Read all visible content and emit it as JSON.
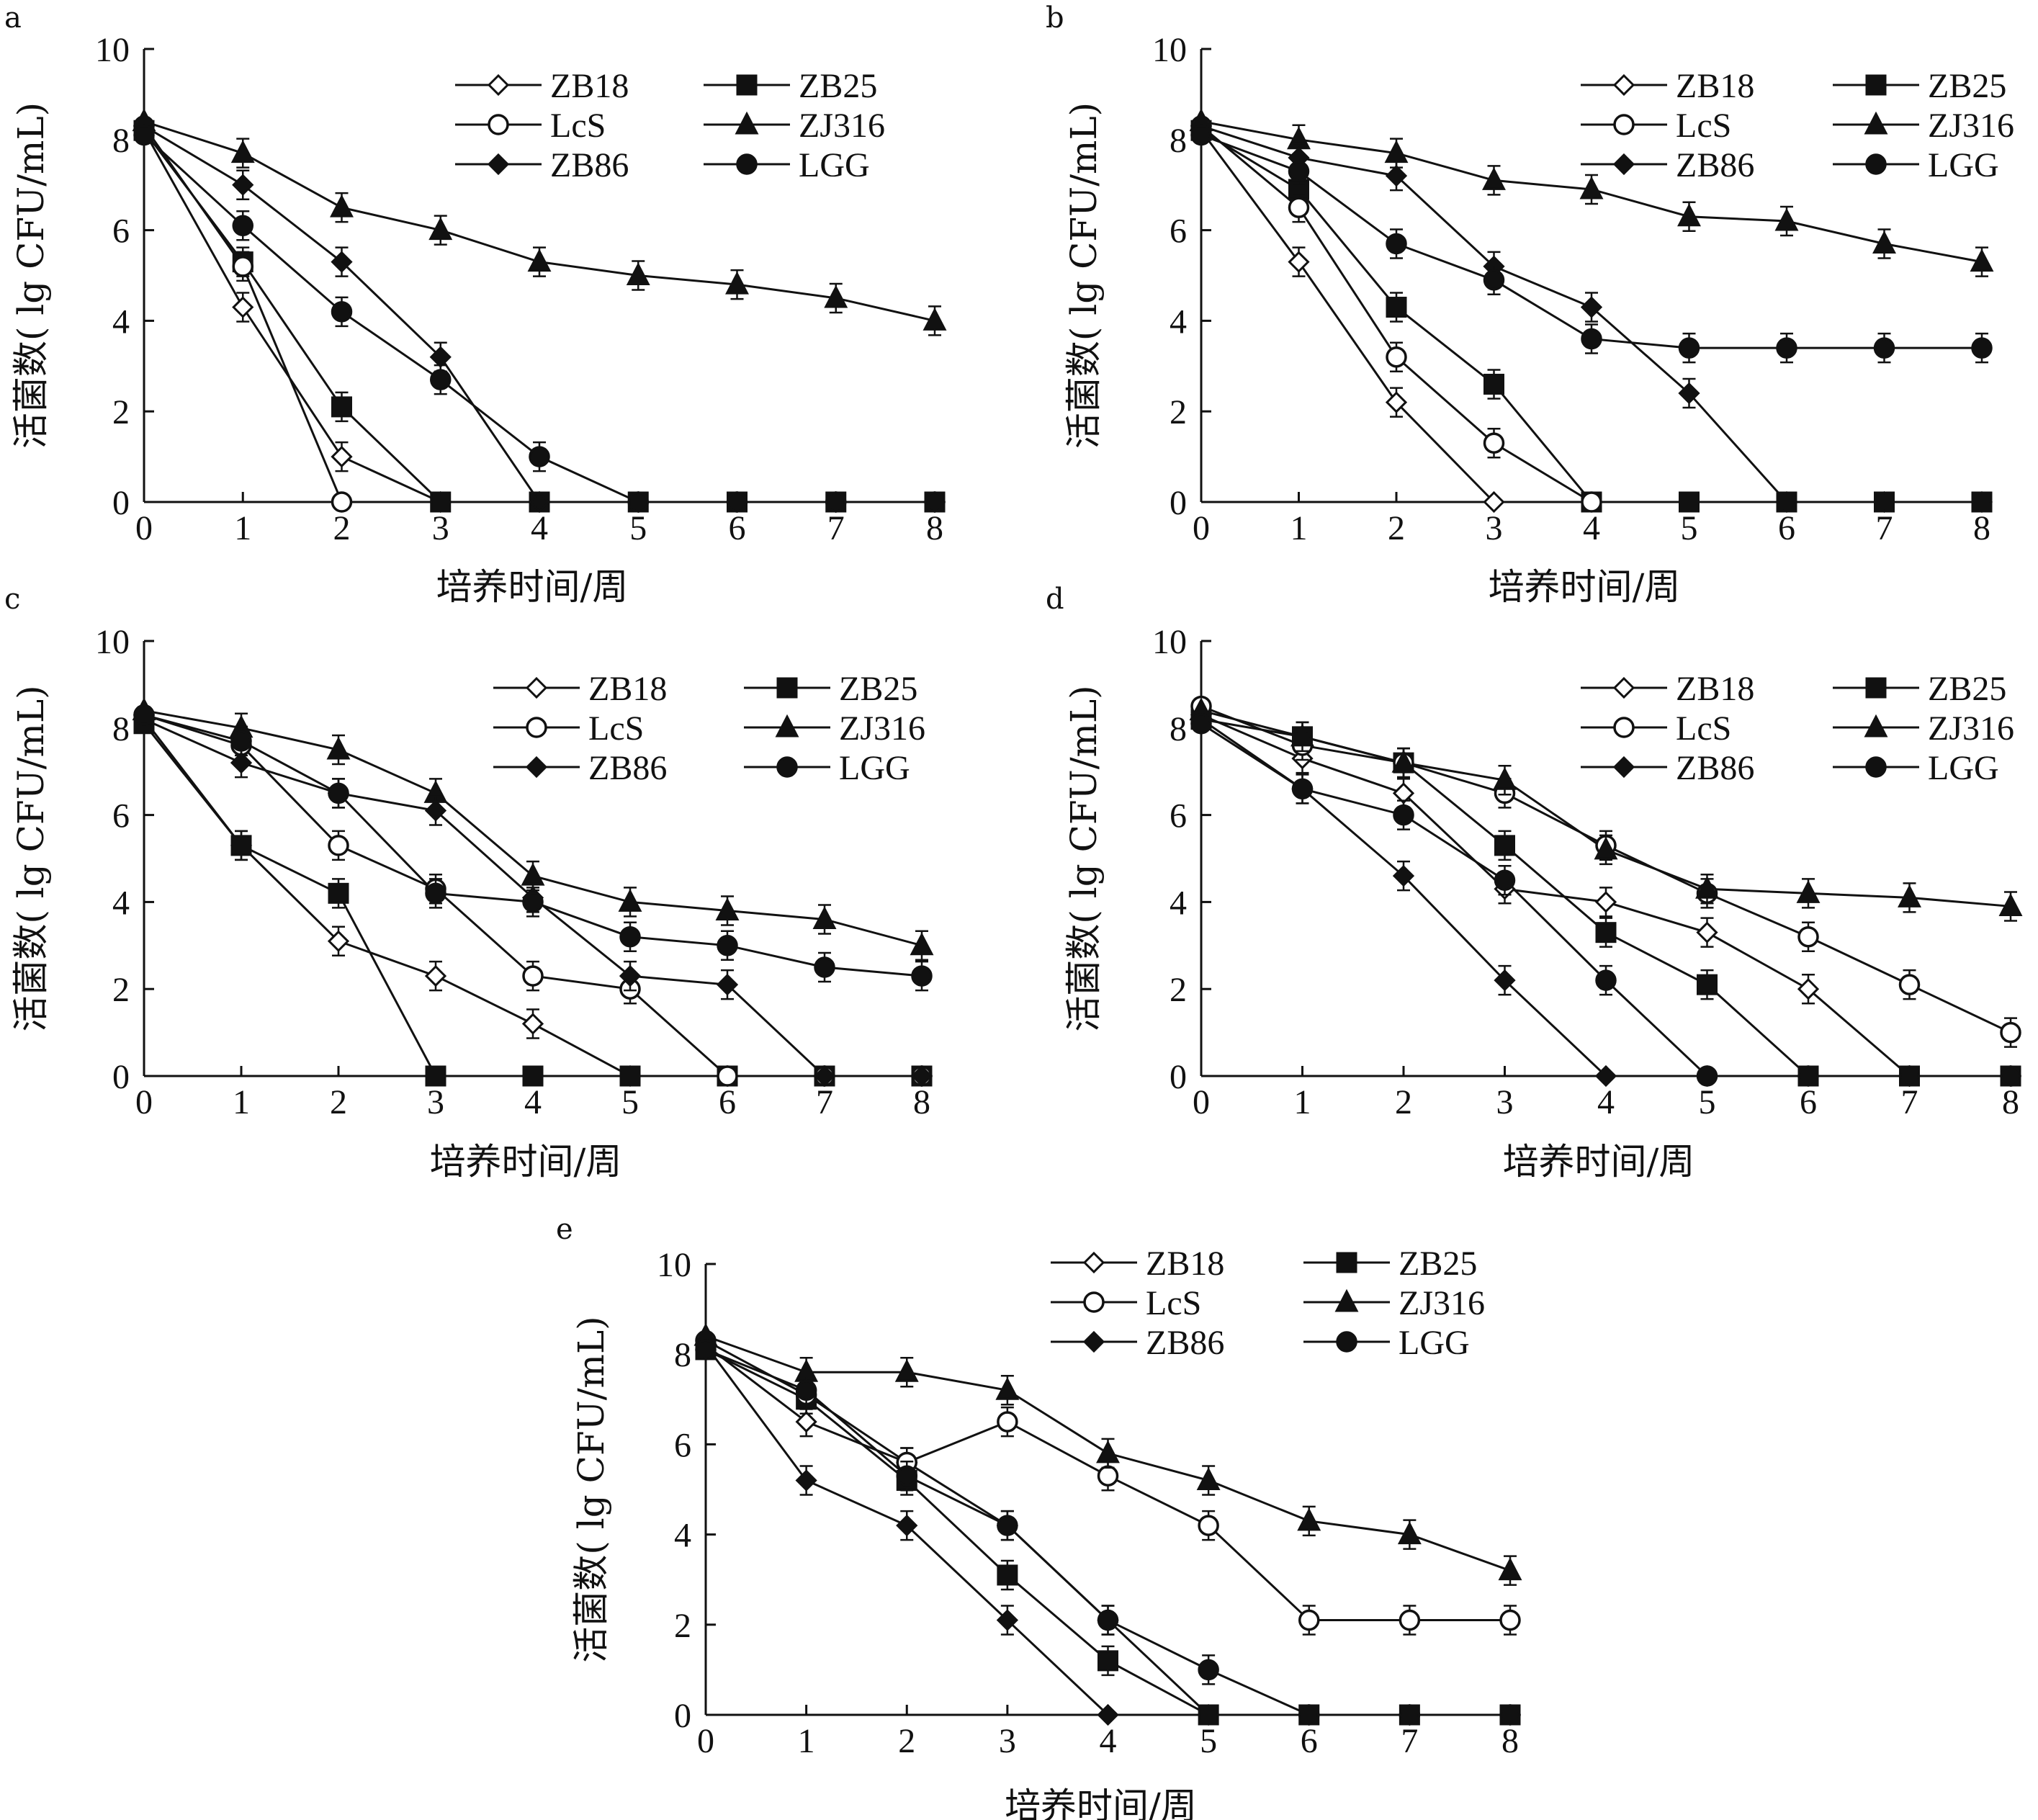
{
  "figure": {
    "x_axis_label": "培养时间/周",
    "y_axis_label": "活菌数( lg CFU/mL)"
  },
  "legend": {
    "entries": [
      "ZB18",
      "ZB25",
      "LcS",
      "ZJ316",
      "ZB86",
      "LGG"
    ]
  },
  "series_style": {
    "ZB18": {
      "marker": "diamond-open"
    },
    "ZB25": {
      "marker": "square-filled"
    },
    "LcS": {
      "marker": "circle-open"
    },
    "ZJ316": {
      "marker": "triangle-filled"
    },
    "ZB86": {
      "marker": "diamond-filled"
    },
    "LGG": {
      "marker": "circle-filled"
    }
  },
  "colors": {
    "ink": "#111111",
    "background": "#ffffff"
  },
  "chart_data": [
    {
      "panel": "a",
      "type": "line",
      "xlabel": "培养时间/周",
      "ylabel": "活菌数( lg CFU/mL)",
      "xlim": [
        0,
        8
      ],
      "ylim": [
        0,
        10
      ],
      "xticks": [
        "0",
        "1",
        "2",
        "3",
        "4",
        "5",
        "6",
        "7",
        "8"
      ],
      "yticks": [
        "0",
        "2",
        "4",
        "6",
        "8",
        "10"
      ],
      "legend_position": "top-right",
      "grid": false,
      "series": [
        {
          "name": "ZB18",
          "x": [
            0,
            1,
            2,
            3,
            4,
            5,
            6,
            7,
            8
          ],
          "values": [
            8.2,
            4.3,
            1.0,
            0,
            0,
            0,
            0,
            0,
            0
          ]
        },
        {
          "name": "ZB25",
          "x": [
            0,
            1,
            2,
            3,
            4,
            5,
            6,
            7,
            8
          ],
          "values": [
            8.2,
            5.3,
            2.1,
            0,
            0,
            0,
            0,
            0,
            0
          ]
        },
        {
          "name": "LcS",
          "x": [
            0,
            1,
            2
          ],
          "values": [
            8.3,
            5.2,
            0
          ]
        },
        {
          "name": "ZJ316",
          "x": [
            0,
            1,
            2,
            3,
            4,
            5,
            6,
            7,
            8
          ],
          "values": [
            8.4,
            7.7,
            6.5,
            6.0,
            5.3,
            5.0,
            4.8,
            4.5,
            4.0
          ]
        },
        {
          "name": "ZB86",
          "x": [
            0,
            1,
            2,
            3,
            4,
            5,
            6,
            7,
            8
          ],
          "values": [
            8.3,
            7.0,
            5.3,
            3.2,
            0,
            0,
            0,
            0,
            0
          ]
        },
        {
          "name": "LGG",
          "x": [
            0,
            1,
            2,
            3,
            4,
            5,
            6,
            7,
            8
          ],
          "values": [
            8.1,
            6.1,
            4.2,
            2.7,
            1.0,
            0,
            0,
            0,
            0
          ]
        }
      ]
    },
    {
      "panel": "b",
      "type": "line",
      "xlabel": "培养时间/周",
      "ylabel": "活菌数( lg CFU/mL)",
      "xlim": [
        0,
        8
      ],
      "ylim": [
        0,
        10
      ],
      "xticks": [
        "0",
        "1",
        "2",
        "3",
        "4",
        "5",
        "6",
        "7",
        "8"
      ],
      "yticks": [
        "0",
        "2",
        "4",
        "6",
        "8",
        "10"
      ],
      "legend_position": "top-right",
      "grid": false,
      "series": [
        {
          "name": "ZB18",
          "x": [
            0,
            1,
            2,
            3
          ],
          "values": [
            8.2,
            5.3,
            2.2,
            0
          ]
        },
        {
          "name": "ZB25",
          "x": [
            0,
            1,
            2,
            3,
            4,
            5,
            6,
            7,
            8
          ],
          "values": [
            8.2,
            6.9,
            4.3,
            2.6,
            0,
            0,
            0,
            0,
            0
          ]
        },
        {
          "name": "LcS",
          "x": [
            0,
            1,
            2,
            3,
            4
          ],
          "values": [
            8.3,
            6.5,
            3.2,
            1.3,
            0
          ]
        },
        {
          "name": "ZJ316",
          "x": [
            0,
            1,
            2,
            3,
            4,
            5,
            6,
            7,
            8
          ],
          "values": [
            8.4,
            8.0,
            7.7,
            7.1,
            6.9,
            6.3,
            6.2,
            5.7,
            5.3
          ]
        },
        {
          "name": "ZB86",
          "x": [
            0,
            1,
            2,
            3,
            4,
            5,
            6,
            7,
            8
          ],
          "values": [
            8.3,
            7.6,
            7.2,
            5.2,
            4.3,
            2.4,
            0,
            0,
            0
          ]
        },
        {
          "name": "LGG",
          "x": [
            0,
            1,
            2,
            3,
            4,
            5,
            6,
            7,
            8
          ],
          "values": [
            8.1,
            7.3,
            5.7,
            4.9,
            3.6,
            3.4,
            3.4,
            3.4,
            3.4
          ]
        }
      ]
    },
    {
      "panel": "c",
      "type": "line",
      "xlabel": "培养时间/周",
      "ylabel": "活菌数( lg CFU/mL)",
      "xlim": [
        0,
        8
      ],
      "ylim": [
        0,
        10
      ],
      "xticks": [
        "0",
        "1",
        "2",
        "3",
        "4",
        "5",
        "6",
        "7",
        "8"
      ],
      "yticks": [
        "0",
        "2",
        "4",
        "6",
        "8",
        "10"
      ],
      "legend_position": "top-right",
      "grid": false,
      "series": [
        {
          "name": "ZB18",
          "x": [
            0,
            1,
            2,
            3,
            4,
            5,
            6,
            7,
            8
          ],
          "values": [
            8.2,
            5.3,
            3.1,
            2.3,
            1.2,
            0,
            0,
            0,
            0
          ]
        },
        {
          "name": "ZB25",
          "x": [
            0,
            1,
            2,
            3,
            4,
            5,
            6,
            7,
            8
          ],
          "values": [
            8.1,
            5.3,
            4.2,
            0,
            0,
            0,
            0,
            0,
            0
          ]
        },
        {
          "name": "LcS",
          "x": [
            0,
            1,
            2,
            3,
            4,
            5,
            6,
            7,
            8
          ],
          "values": [
            8.3,
            7.6,
            5.3,
            4.3,
            2.3,
            2.0,
            0,
            0,
            0
          ]
        },
        {
          "name": "ZJ316",
          "x": [
            0,
            1,
            2,
            3,
            4,
            5,
            6,
            7,
            8
          ],
          "values": [
            8.4,
            8.0,
            7.5,
            6.5,
            4.6,
            4.0,
            3.8,
            3.6,
            3.0
          ]
        },
        {
          "name": "ZB86",
          "x": [
            0,
            1,
            2,
            3,
            4,
            5,
            6,
            7,
            8
          ],
          "values": [
            8.2,
            7.2,
            6.5,
            6.1,
            4.1,
            2.3,
            2.1,
            0,
            0
          ]
        },
        {
          "name": "LGG",
          "x": [
            0,
            1,
            2,
            3,
            4,
            5,
            6,
            7,
            8
          ],
          "values": [
            8.3,
            7.7,
            6.5,
            4.2,
            4.0,
            3.2,
            3.0,
            2.5,
            2.3
          ]
        }
      ]
    },
    {
      "panel": "d",
      "type": "line",
      "xlabel": "培养时间/周",
      "ylabel": "活菌数( lg CFU/mL)",
      "xlim": [
        0,
        8
      ],
      "ylim": [
        0,
        10
      ],
      "xticks": [
        "0",
        "1",
        "2",
        "3",
        "4",
        "5",
        "6",
        "7",
        "8"
      ],
      "yticks": [
        "0",
        "2",
        "4",
        "6",
        "8",
        "10"
      ],
      "legend_position": "top-right",
      "grid": false,
      "series": [
        {
          "name": "ZB18",
          "x": [
            0,
            1,
            2,
            3,
            4,
            5,
            6,
            7,
            8
          ],
          "values": [
            8.3,
            7.3,
            6.5,
            4.3,
            4.0,
            3.3,
            2.0,
            0,
            0
          ]
        },
        {
          "name": "ZB25",
          "x": [
            0,
            1,
            2,
            3,
            4,
            5,
            6,
            7,
            8
          ],
          "values": [
            8.2,
            7.8,
            7.2,
            5.3,
            3.3,
            2.1,
            0,
            0,
            0
          ]
        },
        {
          "name": "LcS",
          "x": [
            0,
            1,
            2,
            3,
            4,
            5,
            6,
            7,
            8
          ],
          "values": [
            8.5,
            7.6,
            7.2,
            6.5,
            5.3,
            4.2,
            3.2,
            2.1,
            1.0
          ]
        },
        {
          "name": "ZJ316",
          "x": [
            0,
            1,
            2,
            3,
            4,
            5,
            6,
            7,
            8
          ],
          "values": [
            8.4,
            7.8,
            7.2,
            6.8,
            5.2,
            4.3,
            4.2,
            4.1,
            3.9
          ]
        },
        {
          "name": "ZB86",
          "x": [
            0,
            1,
            2,
            3,
            4,
            5,
            6,
            7,
            8
          ],
          "values": [
            8.2,
            6.6,
            4.6,
            2.2,
            0,
            0,
            0,
            0,
            0
          ]
        },
        {
          "name": "LGG",
          "x": [
            0,
            1,
            2,
            3,
            4,
            5,
            6,
            7,
            8
          ],
          "values": [
            8.1,
            6.6,
            6.0,
            4.5,
            2.2,
            0,
            0,
            0,
            0
          ]
        }
      ]
    },
    {
      "panel": "e",
      "type": "line",
      "xlabel": "培养时间/周",
      "ylabel": "活菌数( lg CFU/mL)",
      "xlim": [
        0,
        8
      ],
      "ylim": [
        0,
        10
      ],
      "xticks": [
        "0",
        "1",
        "2",
        "3",
        "4",
        "5",
        "6",
        "7",
        "8"
      ],
      "yticks": [
        "0",
        "2",
        "4",
        "6",
        "8",
        "10"
      ],
      "legend_position": "top-right",
      "grid": false,
      "series": [
        {
          "name": "ZB18",
          "x": [
            0,
            1,
            2,
            3,
            4,
            5,
            6,
            7,
            8
          ],
          "values": [
            8.2,
            6.5,
            5.6,
            4.2,
            2.1,
            0,
            0,
            0,
            0
          ]
        },
        {
          "name": "ZB25",
          "x": [
            0,
            1,
            2,
            3,
            4,
            5,
            6,
            7,
            8
          ],
          "values": [
            8.1,
            7.0,
            5.2,
            3.1,
            1.2,
            0,
            0,
            0,
            0
          ]
        },
        {
          "name": "LcS",
          "x": [
            0,
            1,
            2,
            3,
            4,
            5,
            6,
            7,
            8
          ],
          "values": [
            8.3,
            7.1,
            5.6,
            6.5,
            5.3,
            4.2,
            2.1,
            2.1,
            2.1
          ]
        },
        {
          "name": "ZJ316",
          "x": [
            0,
            1,
            2,
            3,
            4,
            5,
            6,
            7,
            8
          ],
          "values": [
            8.4,
            7.6,
            7.6,
            7.2,
            5.8,
            5.2,
            4.3,
            4.0,
            3.2
          ]
        },
        {
          "name": "ZB86",
          "x": [
            0,
            1,
            2,
            3,
            4
          ],
          "values": [
            8.2,
            5.2,
            4.2,
            2.1,
            0
          ]
        },
        {
          "name": "LGG",
          "x": [
            0,
            1,
            2,
            3,
            4,
            5,
            6,
            7,
            8
          ],
          "values": [
            8.1,
            7.2,
            5.3,
            4.2,
            2.1,
            1.0,
            0,
            0,
            0
          ]
        }
      ]
    }
  ]
}
